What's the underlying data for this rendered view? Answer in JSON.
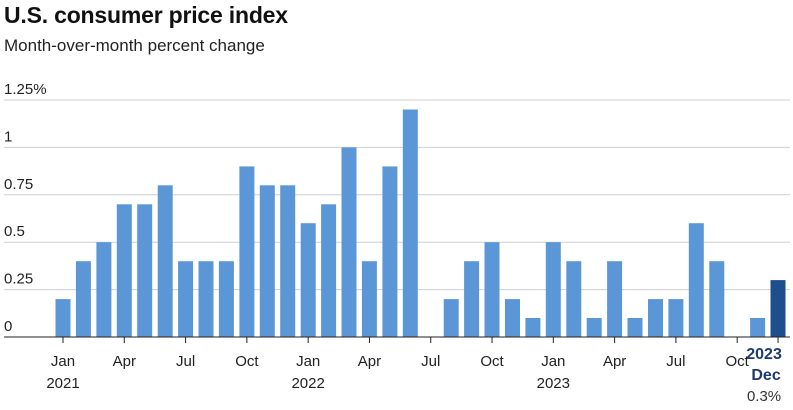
{
  "header": {
    "title": "U.S. consumer price index",
    "subtitle": "Month-over-month percent change"
  },
  "colors": {
    "bar": "#5b97d6",
    "highlight_bar": "#1f4e8c",
    "grid": "#cfcfcf",
    "axis": "#222222",
    "highlight_text": "#1f3a6e"
  },
  "chart_data": {
    "type": "bar",
    "title": "U.S. consumer price index",
    "subtitle": "Month-over-month percent change",
    "unit": "%",
    "ylim": [
      0,
      1.25
    ],
    "yticks": [
      {
        "value": 0,
        "label": "0"
      },
      {
        "value": 0.25,
        "label": "0.25"
      },
      {
        "value": 0.5,
        "label": "0.5"
      },
      {
        "value": 0.75,
        "label": "0.75"
      },
      {
        "value": 1,
        "label": "1"
      },
      {
        "value": 1.25,
        "label": "1.25%"
      }
    ],
    "grid": true,
    "categories": [
      "2021-01",
      "2021-02",
      "2021-03",
      "2021-04",
      "2021-05",
      "2021-06",
      "2021-07",
      "2021-08",
      "2021-09",
      "2021-10",
      "2021-11",
      "2021-12",
      "2022-01",
      "2022-02",
      "2022-03",
      "2022-04",
      "2022-05",
      "2022-06",
      "2022-07",
      "2022-08",
      "2022-09",
      "2022-10",
      "2022-11",
      "2022-12",
      "2023-01",
      "2023-02",
      "2023-03",
      "2023-04",
      "2023-05",
      "2023-06",
      "2023-07",
      "2023-08",
      "2023-09",
      "2023-10",
      "2023-11",
      "2023-12"
    ],
    "values": [
      0.2,
      0.4,
      0.5,
      0.7,
      0.7,
      0.8,
      0.4,
      0.4,
      0.4,
      0.9,
      0.8,
      0.8,
      0.6,
      0.7,
      1.0,
      0.4,
      0.9,
      1.2,
      0.0,
      0.2,
      0.4,
      0.5,
      0.2,
      0.1,
      0.5,
      0.4,
      0.1,
      0.4,
      0.1,
      0.2,
      0.2,
      0.6,
      0.4,
      0.0,
      0.1,
      0.3
    ],
    "highlight_index": 35,
    "xtick_labels": [
      {
        "index": 0,
        "label": "Jan",
        "year": "2021"
      },
      {
        "index": 3,
        "label": "Apr"
      },
      {
        "index": 6,
        "label": "Jul"
      },
      {
        "index": 9,
        "label": "Oct"
      },
      {
        "index": 12,
        "label": "Jan",
        "year": "2022"
      },
      {
        "index": 15,
        "label": "Apr"
      },
      {
        "index": 18,
        "label": "Jul"
      },
      {
        "index": 21,
        "label": "Oct"
      },
      {
        "index": 24,
        "label": "Jan",
        "year": "2023"
      },
      {
        "index": 27,
        "label": "Apr"
      },
      {
        "index": 30,
        "label": "Jul"
      },
      {
        "index": 33,
        "label": "Oct"
      }
    ],
    "highlight_labels": {
      "year": "2023",
      "month": "Dec",
      "value": "0.3%"
    }
  }
}
